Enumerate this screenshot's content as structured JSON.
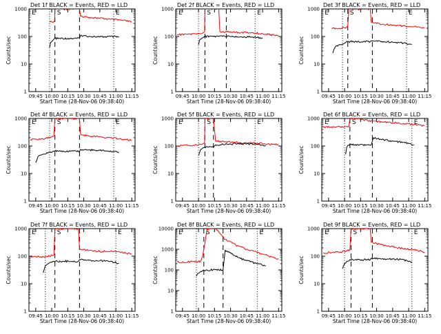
{
  "common": {
    "title_suffix": "BLACK = Events, RED = LLD",
    "xlabel": "Start Time (28-Nov-06 09:38:40)",
    "ylabel": "Counts/sec",
    "x_ticks": [
      "09:45",
      "10:00",
      "10:15",
      "10:30",
      "10:45",
      "11:00",
      "11:15"
    ],
    "markers": [
      "E",
      "S",
      "E"
    ],
    "colors": {
      "events": "#000000",
      "lld": "#ff0000"
    }
  },
  "chart_data": [
    {
      "type": "line",
      "title": "Det 1f",
      "y_scale": "log",
      "ylim": [
        1,
        1000
      ],
      "y_ticks": [
        "1",
        "10",
        "100",
        "1000"
      ],
      "xlim": [
        "09:38:40",
        "11:18"
      ],
      "vlines": [
        {
          "time": "09:58",
          "style": "dotted"
        },
        {
          "time": "10:03",
          "style": "dashed"
        },
        {
          "time": "10:26",
          "style": "dashed"
        },
        {
          "time": "10:58",
          "style": "dotted"
        }
      ],
      "series": [
        {
          "name": "LLD",
          "x": [
            "09:58",
            "10:00",
            "10:02",
            "10:02:40",
            "10:03",
            "10:06",
            "10:26",
            "10:27",
            "10:35",
            "10:45",
            "10:55",
            "11:05",
            "11:15"
          ],
          "y": [
            330,
            340,
            350,
            360,
            1000,
            1000,
            1000,
            540,
            500,
            460,
            420,
            390,
            340
          ]
        },
        {
          "name": "Events",
          "x": [
            "09:58",
            "09:59",
            "10:00",
            "10:01",
            "10:02",
            "10:02:40",
            "10:26",
            "10:27",
            "10:35",
            "10:45",
            "10:55",
            "11:03"
          ],
          "y": [
            40,
            60,
            65,
            72,
            80,
            85,
            85,
            110,
            102,
            96,
            100,
            95
          ]
        }
      ]
    },
    {
      "type": "line",
      "title": "Det 2f",
      "y_scale": "log",
      "ylim": [
        1,
        1000
      ],
      "y_ticks": [
        "1",
        "10",
        "100",
        "1000"
      ],
      "xlim": [
        "09:38:40",
        "11:18"
      ],
      "vlines": [
        {
          "time": "10:00",
          "style": "dotted"
        },
        {
          "time": "10:06",
          "style": "dashed"
        },
        {
          "time": "10:26",
          "style": "dashed"
        },
        {
          "time": "10:53",
          "style": "dotted"
        }
      ],
      "series": [
        {
          "name": "LLD",
          "x": [
            "09:40",
            "09:50",
            "10:00",
            "10:04",
            "10:05:40",
            "10:06",
            "10:14",
            "10:19",
            "10:20",
            "10:30",
            "10:40",
            "10:50",
            "11:00",
            "11:15"
          ],
          "y": [
            115,
            120,
            125,
            135,
            150,
            1000,
            1000,
            1000,
            150,
            145,
            140,
            138,
            125,
            110
          ]
        },
        {
          "name": "Events",
          "x": [
            "10:00",
            "10:01",
            "10:03",
            "10:05",
            "10:05:40",
            "10:19",
            "10:20",
            "10:30",
            "10:40",
            "10:50",
            "11:00"
          ],
          "y": [
            50,
            75,
            85,
            95,
            100,
            100,
            105,
            100,
            97,
            95,
            90
          ]
        }
      ]
    },
    {
      "type": "line",
      "title": "Det 3f",
      "y_scale": "log",
      "ylim": [
        1,
        1000
      ],
      "y_ticks": [
        "1",
        "10",
        "100",
        "1000"
      ],
      "xlim": [
        "09:38:40",
        "11:18"
      ],
      "vlines": [
        {
          "time": "09:58",
          "style": "dotted"
        },
        {
          "time": "10:03",
          "style": "dashed"
        },
        {
          "time": "10:26",
          "style": "dashed"
        },
        {
          "time": "10:58",
          "style": "dotted"
        }
      ],
      "series": [
        {
          "name": "LLD",
          "x": [
            "09:48",
            "09:55",
            "10:00",
            "10:03",
            "10:04",
            "10:24",
            "10:25",
            "10:35",
            "10:45",
            "10:55",
            "11:05",
            "11:15"
          ],
          "y": [
            190,
            200,
            210,
            230,
            1000,
            1000,
            330,
            280,
            260,
            240,
            225,
            205
          ]
        },
        {
          "name": "Events",
          "x": [
            "09:49",
            "09:51",
            "09:55",
            "10:00",
            "10:03",
            "10:24",
            "10:25",
            "10:35",
            "10:45",
            "10:55",
            "11:03"
          ],
          "y": [
            25,
            40,
            50,
            58,
            65,
            65,
            70,
            66,
            62,
            58,
            52
          ]
        }
      ]
    },
    {
      "type": "line",
      "title": "Det 4f",
      "y_scale": "log",
      "ylim": [
        1,
        1000
      ],
      "y_ticks": [
        "1",
        "10",
        "100",
        "1000"
      ],
      "xlim": [
        "09:38:40",
        "11:18"
      ],
      "vlines": [
        {
          "time": "09:58",
          "style": "dotted"
        },
        {
          "time": "10:03",
          "style": "dashed"
        },
        {
          "time": "10:26",
          "style": "dashed"
        },
        {
          "time": "10:58",
          "style": "dotted"
        }
      ],
      "series": [
        {
          "name": "LLD",
          "x": [
            "09:40",
            "09:50",
            "09:58",
            "10:02",
            "10:03",
            "10:26",
            "10:27",
            "10:35",
            "10:45",
            "10:55",
            "11:05",
            "11:15"
          ],
          "y": [
            170,
            180,
            200,
            230,
            1000,
            1000,
            260,
            230,
            220,
            200,
            180,
            160
          ]
        },
        {
          "name": "Events",
          "x": [
            "09:45",
            "09:47",
            "09:52",
            "09:58",
            "10:02",
            "10:26",
            "10:27",
            "10:35",
            "10:45",
            "10:55",
            "11:03"
          ],
          "y": [
            25,
            40,
            50,
            60,
            65,
            65,
            75,
            72,
            70,
            66,
            60
          ]
        }
      ]
    },
    {
      "type": "line",
      "title": "Det 5f",
      "y_scale": "log",
      "ylim": [
        1,
        1000
      ],
      "y_ticks": [
        "1",
        "10",
        "100",
        "1000"
      ],
      "xlim": [
        "09:38:40",
        "11:18"
      ],
      "vlines": [
        {
          "time": "10:00",
          "style": "dotted"
        },
        {
          "time": "10:06",
          "style": "dashed"
        },
        {
          "time": "10:14",
          "style": "dashed"
        },
        {
          "time": "10:53",
          "style": "dotted"
        }
      ],
      "series": [
        {
          "name": "LLD",
          "x": [
            "09:40",
            "09:50",
            "10:00",
            "10:04",
            "10:05:40",
            "10:06",
            "10:14",
            "10:16",
            "10:25",
            "10:35",
            "10:45",
            "10:55",
            "11:05",
            "11:15"
          ],
          "y": [
            100,
            105,
            110,
            120,
            130,
            1000,
            1000,
            150,
            140,
            135,
            130,
            130,
            120,
            110
          ]
        },
        {
          "name": "Events",
          "x": [
            "10:00",
            "10:02",
            "10:04",
            "10:05:40",
            "10:14",
            "10:16",
            "10:25",
            "10:35",
            "10:45",
            "10:55",
            "11:03"
          ],
          "y": [
            45,
            75,
            85,
            90,
            90,
            110,
            115,
            120,
            118,
            115,
            105
          ]
        }
      ]
    },
    {
      "type": "line",
      "title": "Det 6f",
      "y_scale": "log",
      "ylim": [
        1,
        1000
      ],
      "y_ticks": [
        "1",
        "10",
        "100",
        "1000"
      ],
      "xlim": [
        "09:38:40",
        "11:18"
      ],
      "vlines": [
        {
          "time": "10:00",
          "style": "dotted"
        },
        {
          "time": "10:05",
          "style": "dashed"
        },
        {
          "time": "10:26",
          "style": "dashed"
        },
        {
          "time": "11:03",
          "style": "dotted"
        }
      ],
      "series": [
        {
          "name": "LLD",
          "x": [
            "09:40",
            "09:50",
            "10:00",
            "10:04",
            "10:05",
            "10:14",
            "10:15",
            "10:25",
            "10:35",
            "10:45",
            "10:55",
            "11:05",
            "11:15"
          ],
          "y": [
            480,
            490,
            500,
            510,
            1000,
            1000,
            900,
            820,
            740,
            700,
            660,
            600,
            550
          ]
        },
        {
          "name": "Events",
          "x": [
            "10:01",
            "10:02",
            "10:04",
            "10:25",
            "10:27",
            "10:35",
            "10:45",
            "10:55",
            "11:05"
          ],
          "y": [
            50,
            90,
            110,
            110,
            200,
            170,
            150,
            135,
            110
          ]
        }
      ]
    },
    {
      "type": "line",
      "title": "Det 7f",
      "y_scale": "log",
      "ylim": [
        1,
        1000
      ],
      "y_ticks": [
        "1",
        "10",
        "100",
        "1000"
      ],
      "xlim": [
        "09:38:40",
        "11:18"
      ],
      "vlines": [
        {
          "time": "09:54",
          "style": "dotted"
        },
        {
          "time": "10:03",
          "style": "dashed"
        },
        {
          "time": "10:26",
          "style": "dashed"
        },
        {
          "time": "11:00",
          "style": "dotted"
        }
      ],
      "series": [
        {
          "name": "LLD",
          "x": [
            "09:40",
            "09:50",
            "09:58",
            "10:02",
            "10:03",
            "10:25",
            "10:26",
            "10:35",
            "10:45",
            "10:55",
            "11:05",
            "11:15"
          ],
          "y": [
            95,
            95,
            100,
            110,
            1000,
            1000,
            180,
            160,
            150,
            150,
            140,
            120
          ]
        },
        {
          "name": "Events",
          "x": [
            "09:52",
            "09:54",
            "09:57",
            "10:00",
            "10:02",
            "10:25",
            "10:26",
            "10:35",
            "10:45",
            "10:55",
            "11:03"
          ],
          "y": [
            25,
            45,
            55,
            60,
            65,
            65,
            75,
            70,
            68,
            65,
            55
          ]
        }
      ]
    },
    {
      "type": "line",
      "title": "Det 8f",
      "y_scale": "log",
      "ylim": [
        1,
        10000
      ],
      "y_ticks": [
        "1",
        "10",
        "100",
        "1000",
        "10000"
      ],
      "xlim": [
        "09:38:40",
        "11:18"
      ],
      "vlines": [
        {
          "time": "09:58",
          "style": "dotted"
        },
        {
          "time": "10:05",
          "style": "dashed"
        },
        {
          "time": "10:23",
          "style": "dashed"
        },
        {
          "time": "10:55",
          "style": "dotted"
        }
      ],
      "series": [
        {
          "name": "LLD",
          "x": [
            "09:40",
            "09:50",
            "09:58",
            "10:02",
            "10:04",
            "10:06",
            "10:08",
            "10:16",
            "10:20",
            "10:25",
            "10:35",
            "10:45",
            "10:55",
            "11:05",
            "11:15"
          ],
          "y": [
            240,
            245,
            250,
            260,
            500,
            2000,
            10000,
            10000,
            6000,
            3000,
            1600,
            1000,
            700,
            500,
            330
          ]
        },
        {
          "name": "Events",
          "x": [
            "09:58",
            "10:00",
            "10:02",
            "10:04",
            "10:05",
            "10:23",
            "10:25",
            "10:35",
            "10:45",
            "10:55",
            "11:03"
          ],
          "y": [
            50,
            70,
            85,
            95,
            100,
            100,
            900,
            450,
            280,
            200,
            160
          ]
        }
      ]
    },
    {
      "type": "line",
      "title": "Det 9f",
      "y_scale": "log",
      "ylim": [
        1,
        1000
      ],
      "y_ticks": [
        "1",
        "10",
        "100",
        "1000"
      ],
      "xlim": [
        "09:38:40",
        "11:18"
      ],
      "vlines": [
        {
          "time": "10:00",
          "style": "dotted"
        },
        {
          "time": "10:06",
          "style": "dashed"
        },
        {
          "time": "10:26",
          "style": "dashed"
        },
        {
          "time": "11:03",
          "style": "dotted"
        }
      ],
      "series": [
        {
          "name": "LLD",
          "x": [
            "09:40",
            "09:50",
            "10:00",
            "10:05",
            "10:06",
            "10:24",
            "10:25",
            "10:35",
            "10:45",
            "10:55",
            "11:05",
            "11:15"
          ],
          "y": [
            130,
            140,
            150,
            170,
            1000,
            1000,
            320,
            260,
            220,
            190,
            170,
            140
          ]
        },
        {
          "name": "Events",
          "x": [
            "09:58",
            "10:00",
            "10:02",
            "10:05",
            "10:24",
            "10:25",
            "10:35",
            "10:45",
            "10:55",
            "11:03"
          ],
          "y": [
            35,
            55,
            65,
            75,
            75,
            85,
            80,
            78,
            75,
            62
          ]
        }
      ]
    }
  ]
}
